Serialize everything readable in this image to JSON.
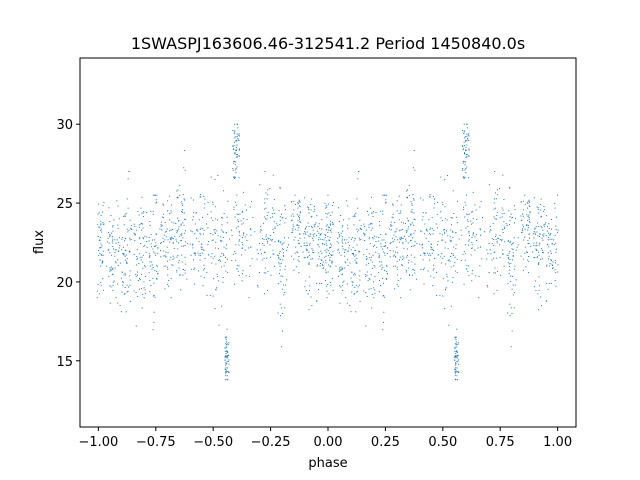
{
  "chart_data": {
    "type": "scatter",
    "title": "1SWASPJ163606.46-312541.2 Period 1450840.0s",
    "xlabel": "phase",
    "ylabel": "flux",
    "xlim": [
      -1.08,
      1.08
    ],
    "ylim": [
      10.8,
      34.2
    ],
    "x_ticks": [
      -1.0,
      -0.75,
      -0.5,
      -0.25,
      0.0,
      0.25,
      0.5,
      0.75,
      1.0
    ],
    "x_tick_labels": [
      "−1.00",
      "−0.75",
      "−0.50",
      "−0.25",
      "0.00",
      "0.25",
      "0.50",
      "0.75",
      "1.00"
    ],
    "y_ticks": [
      15,
      20,
      25,
      30
    ],
    "y_tick_labels": [
      "15",
      "20",
      "25",
      "30"
    ],
    "grid": false,
    "point_color": "#1f77b4",
    "baseline_flux": 22.5,
    "phase_period": 1.0,
    "clusters": [
      {
        "phase": -0.995,
        "width": 0.02,
        "center": 22.3,
        "spread": 1.4,
        "low": 19.0,
        "high": 26.0
      },
      {
        "phase": -0.93,
        "width": 0.025,
        "center": 22.0,
        "spread": 1.6,
        "low": 18.5,
        "high": 25.8
      },
      {
        "phase": -0.88,
        "width": 0.02,
        "center": 22.0,
        "spread": 1.8,
        "low": 18.0,
        "high": 27.0
      },
      {
        "phase": -0.82,
        "width": 0.025,
        "center": 21.5,
        "spread": 1.8,
        "low": 16.5,
        "high": 25.5
      },
      {
        "phase": -0.76,
        "width": 0.02,
        "center": 22.0,
        "spread": 2.0,
        "low": 16.0,
        "high": 25.5
      },
      {
        "phase": -0.7,
        "width": 0.03,
        "center": 22.5,
        "spread": 1.5,
        "low": 19.0,
        "high": 25.5
      },
      {
        "phase": -0.64,
        "width": 0.02,
        "center": 23.0,
        "spread": 1.8,
        "low": 19.5,
        "high": 29.0
      },
      {
        "phase": -0.56,
        "width": 0.04,
        "center": 22.5,
        "spread": 1.6,
        "low": 17.5,
        "high": 26.0
      },
      {
        "phase": -0.475,
        "width": 0.04,
        "center": 22.0,
        "spread": 1.8,
        "low": 17.0,
        "high": 27.0
      },
      {
        "phase": -0.44,
        "width": 0.01,
        "center": 15.0,
        "spread": 0.8,
        "low": 13.8,
        "high": 16.5
      },
      {
        "phase": -0.4,
        "width": 0.015,
        "center": 28.5,
        "spread": 1.0,
        "low": 26.5,
        "high": 30.0
      },
      {
        "phase": -0.37,
        "width": 0.04,
        "center": 23.0,
        "spread": 1.6,
        "low": 19.0,
        "high": 27.0
      },
      {
        "phase": -0.27,
        "width": 0.04,
        "center": 23.5,
        "spread": 1.5,
        "low": 19.0,
        "high": 27.0
      },
      {
        "phase": -0.2,
        "width": 0.02,
        "center": 21.5,
        "spread": 2.0,
        "low": 15.5,
        "high": 26.0
      },
      {
        "phase": -0.14,
        "width": 0.02,
        "center": 23.5,
        "spread": 1.0,
        "low": 20.0,
        "high": 25.5
      },
      {
        "phase": -0.08,
        "width": 0.025,
        "center": 22.5,
        "spread": 1.5,
        "low": 17.5,
        "high": 26.0
      },
      {
        "phase": -0.02,
        "width": 0.03,
        "center": 22.0,
        "spread": 1.4,
        "low": 18.5,
        "high": 25.5
      }
    ]
  }
}
